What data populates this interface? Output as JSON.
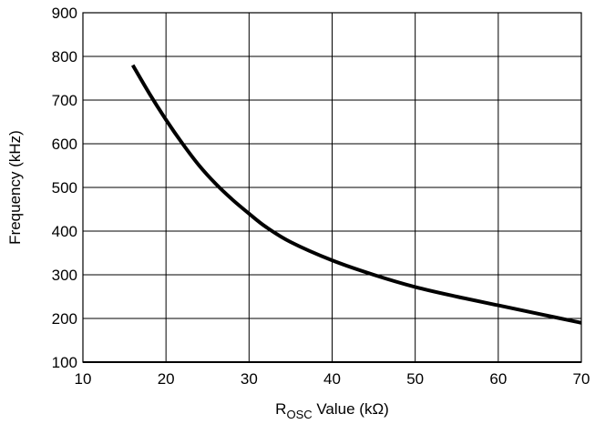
{
  "chart_data": {
    "type": "line",
    "title": "",
    "xlabel_main": "R",
    "xlabel_sub": "OSC",
    "xlabel_rest": " Value (kΩ)",
    "ylabel": "Frequency (kHz)",
    "xlim": [
      10,
      70
    ],
    "ylim": [
      100,
      900
    ],
    "xticks": [
      10,
      20,
      30,
      40,
      50,
      60,
      70
    ],
    "yticks": [
      100,
      200,
      300,
      400,
      500,
      600,
      700,
      800,
      900
    ],
    "grid": true,
    "legend": "none",
    "series": [
      {
        "color": "#000000",
        "x": [
          16,
          18,
          20,
          22,
          24,
          26,
          28,
          30,
          32,
          35,
          40,
          45,
          50,
          55,
          60,
          65,
          70
        ],
        "y": [
          780,
          715,
          655,
          600,
          550,
          508,
          472,
          440,
          410,
          375,
          333,
          300,
          272,
          250,
          230,
          210,
          190
        ]
      }
    ]
  }
}
